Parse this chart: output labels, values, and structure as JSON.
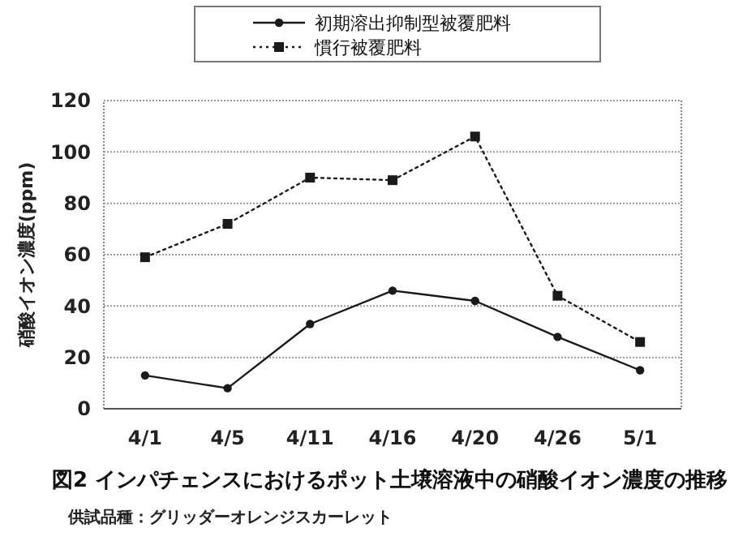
{
  "chart_data": {
    "type": "line",
    "title": "図2 インパチェンスにおけるポット土壌溶液中の硝酸イオン濃度の推移",
    "ylabel": "硝酸イオン濃度(ppm)",
    "annotations": [
      "供試品種：グリッダーオレンジスカーレット"
    ],
    "categories": [
      "4/1",
      "4/5",
      "4/11",
      "4/16",
      "4/20",
      "4/26",
      "5/1"
    ],
    "series": [
      {
        "name": "初期溶出抑制型被覆肥料",
        "color": "#1a1a1a",
        "marker": "circle",
        "line_style": "solid",
        "values": [
          13,
          8,
          33,
          46,
          42,
          28,
          15
        ]
      },
      {
        "name": "慣行被覆肥料",
        "color": "#1a1a1a",
        "marker": "square",
        "line_style": "dotted",
        "values": [
          59,
          72,
          90,
          89,
          106,
          44,
          26
        ]
      }
    ],
    "ylim": [
      0,
      120
    ],
    "yticks": [
      0,
      20,
      40,
      60,
      80,
      100,
      120
    ],
    "grid": "y",
    "legend": "top"
  }
}
